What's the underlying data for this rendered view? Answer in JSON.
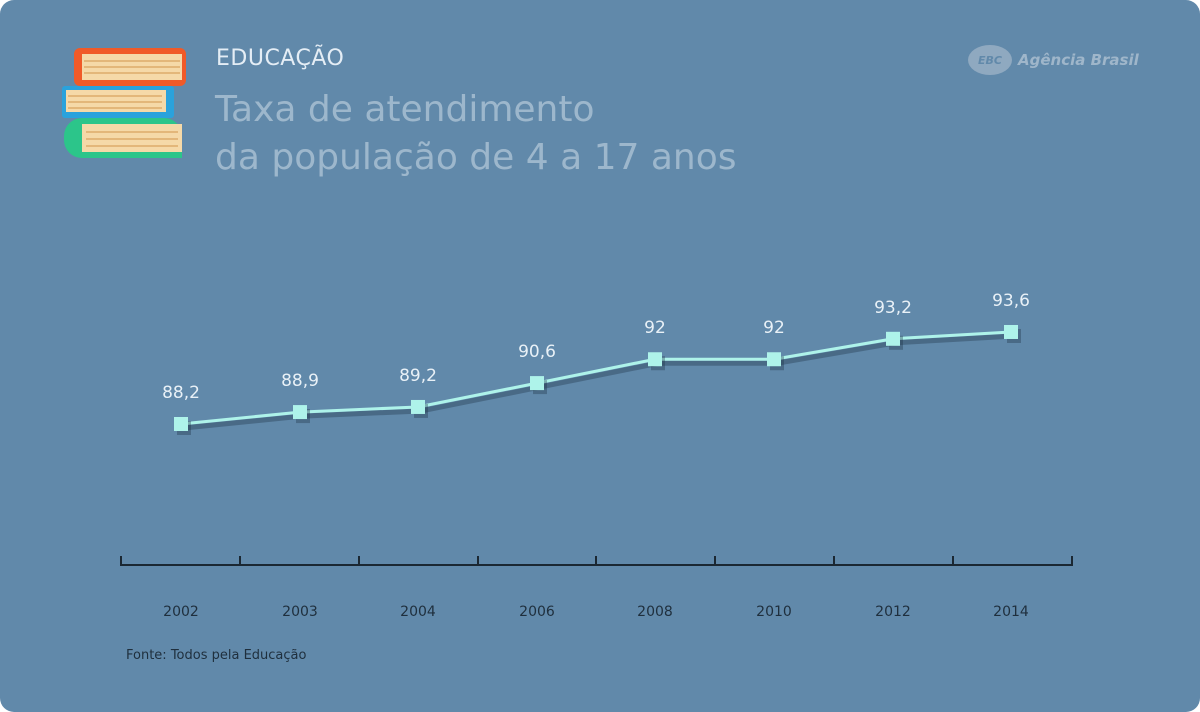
{
  "header": {
    "category": "EDUCAÇÃO",
    "title_line1": "Taxa de atendimento",
    "title_line2": "da população de 4 a 17 anos",
    "brand_logo": "EBC",
    "brand_name": "Agência Brasil",
    "icon": "books-icon"
  },
  "colors": {
    "background": "#6189aa",
    "line": "#aef3ea",
    "axis": "#1b2833",
    "book_orange": "#f05a28",
    "book_blue": "#2aa2dc",
    "book_green": "#2cc58a",
    "book_pages": "#f5d9a8"
  },
  "chart_data": {
    "type": "line",
    "title": "Taxa de atendimento da população de 4 a 17 anos",
    "categories": [
      "2002",
      "2003",
      "2004",
      "2006",
      "2008",
      "2010",
      "2012",
      "2014"
    ],
    "values": [
      88.2,
      88.9,
      89.2,
      90.6,
      92,
      92,
      93.2,
      93.6
    ],
    "value_labels": [
      "88,2",
      "88,9",
      "89,2",
      "90,6",
      "92",
      "92",
      "93,2",
      "93,6"
    ],
    "xlabel": "",
    "ylabel": "",
    "grid": false,
    "legend": "none"
  },
  "footer": {
    "source": "Fonte: Todos pela Educação"
  }
}
